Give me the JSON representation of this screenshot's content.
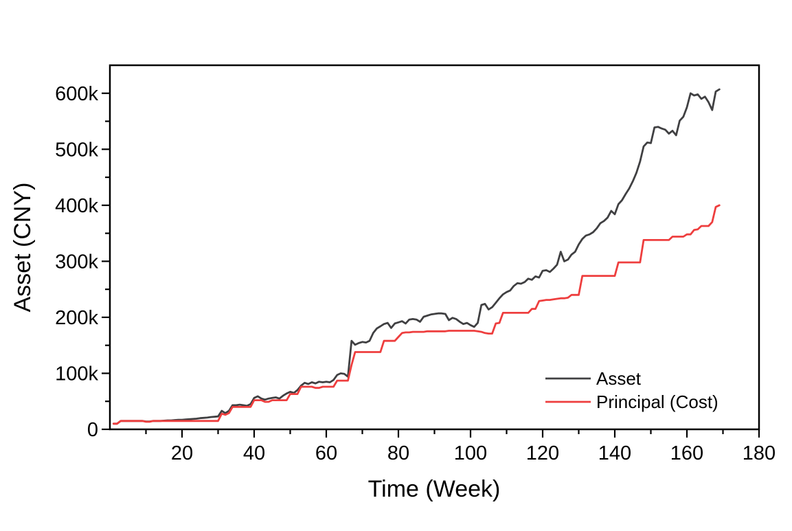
{
  "chart_data": {
    "type": "line",
    "title": "",
    "xlabel": "Time (Week)",
    "ylabel": "Asset (CNY)",
    "grid": false,
    "background": "#ffffff",
    "frame_color": "#000000",
    "legend_position": "inside-lower-right",
    "x_axis": {
      "min": 0,
      "max": 180,
      "major_ticks": [
        20,
        40,
        60,
        80,
        100,
        120,
        140,
        160,
        180
      ],
      "minor_ticks": [
        10,
        30,
        50,
        70,
        90,
        110,
        130,
        150,
        170
      ],
      "tick_labels": [
        "20",
        "40",
        "60",
        "80",
        "100",
        "120",
        "140",
        "160",
        "180"
      ]
    },
    "y_axis": {
      "min_k": 0,
      "max_k": 650,
      "major_ticks_k": [
        0,
        100,
        200,
        300,
        400,
        500,
        600
      ],
      "minor_ticks_k": [
        50,
        150,
        250,
        350,
        450,
        550
      ],
      "tick_labels": [
        "0",
        "100k",
        "200k",
        "300k",
        "400k",
        "500k",
        "600k"
      ]
    },
    "x_start_week": 1,
    "x_step": 1,
    "n_points": 169,
    "units": "values_k are thousands of CNY",
    "series": [
      {
        "name": "Asset",
        "color": "#404042",
        "line_width": 2.8,
        "values_k": [
          10,
          10,
          15,
          15,
          15,
          15,
          15,
          15,
          15,
          14,
          14,
          15,
          15,
          15,
          15.5,
          16,
          16,
          16.5,
          17,
          17,
          17.5,
          18,
          18.5,
          19,
          20,
          20.5,
          21,
          22,
          22.5,
          23,
          33,
          29,
          33,
          43,
          43,
          44,
          43,
          42,
          45,
          56,
          59,
          55,
          53,
          55,
          56,
          57,
          55,
          60,
          64,
          67,
          65,
          70,
          78,
          83,
          81,
          84,
          82,
          85,
          84,
          85,
          84,
          88,
          97,
          100,
          99,
          94,
          158,
          151,
          154,
          156,
          155,
          158,
          172,
          180,
          184,
          188,
          190,
          181,
          189,
          191,
          193,
          189,
          196,
          197,
          196,
          192,
          201,
          203,
          205,
          206,
          207,
          207,
          206,
          195,
          199,
          197,
          192,
          188,
          190,
          186,
          183,
          190,
          222,
          224,
          214,
          218,
          226,
          234,
          241,
          245,
          248,
          256,
          261,
          260,
          263,
          269,
          267,
          273,
          271,
          283,
          284,
          281,
          287,
          294,
          317,
          300,
          303,
          312,
          317,
          330,
          340,
          346,
          348,
          352,
          359,
          368,
          372,
          378,
          390,
          384,
          402,
          409,
          420,
          430,
          443,
          458,
          478,
          505,
          512,
          511,
          539,
          540,
          537,
          535,
          528,
          533,
          525,
          551,
          558,
          575,
          600,
          596,
          598,
          590,
          594,
          584,
          570,
          603,
          607
        ]
      },
      {
        "name": "Principal (Cost)",
        "color": "#ee3e3e",
        "line_width": 2.8,
        "values_k": [
          10,
          10,
          15,
          15,
          15,
          15,
          15,
          15,
          15,
          13.5,
          13.5,
          15,
          15,
          15,
          15,
          15,
          15,
          15,
          15,
          15,
          15,
          15,
          15,
          15,
          15,
          15,
          15,
          15,
          15,
          15,
          28,
          26,
          29,
          40,
          40,
          40,
          40,
          40,
          40,
          52,
          52,
          52,
          49,
          49,
          52,
          52,
          52,
          52,
          52,
          63,
          63,
          63,
          76,
          76,
          76,
          76,
          74,
          74,
          76,
          76,
          76,
          76,
          87,
          87,
          87,
          87,
          115,
          138,
          138,
          138,
          138,
          138,
          138,
          138,
          138,
          158,
          158,
          158,
          158,
          165,
          172,
          173,
          173,
          174,
          174,
          174,
          174,
          175,
          175,
          175,
          175,
          175,
          175,
          176,
          176,
          176,
          176,
          176,
          176,
          176,
          176,
          175,
          174,
          172,
          171,
          171,
          189,
          190,
          208,
          208,
          208,
          208,
          208,
          208,
          208,
          208,
          215,
          215,
          229,
          230,
          231,
          231,
          232,
          233,
          234,
          234,
          235,
          240,
          240,
          240,
          274,
          274,
          274,
          274,
          274,
          274,
          274,
          274,
          274,
          274,
          298,
          298,
          298,
          298,
          298,
          298,
          298,
          338,
          338,
          338,
          338,
          338,
          338,
          338,
          338,
          344,
          344,
          344,
          344,
          348,
          348,
          356,
          357,
          363,
          363,
          363,
          370,
          397,
          400
        ]
      }
    ]
  }
}
